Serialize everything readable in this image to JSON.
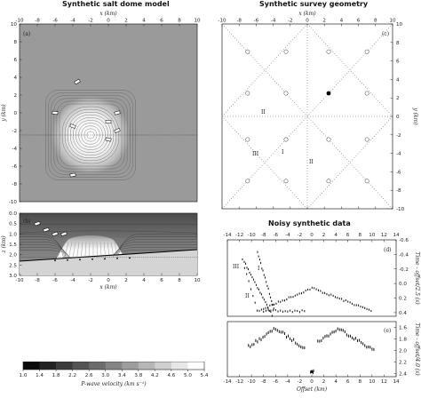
{
  "titles": {
    "model": "Synthetic salt dome model",
    "survey": "Synthetic survey geometry",
    "data": "Noisy synthetic data"
  },
  "panel_labels": {
    "a": "(a)",
    "b": "(b)",
    "c": "(c)",
    "d": "(d)",
    "e": "(e)"
  },
  "axes": {
    "x_km": "x (km)",
    "y_km": "y (km)",
    "z_km": "z (km)",
    "offset_km": "Offset (km)",
    "time_d": "Time - offset/2.5 (s)",
    "time_e": "Time - offset/4.0 (s)",
    "xy_ticks": [
      "-10",
      "-8",
      "-6",
      "-4",
      "-2",
      "0",
      "2",
      "4",
      "6",
      "8",
      "10"
    ],
    "z_ticks": [
      "0.0",
      "0.5",
      "1.0",
      "1.5",
      "2.0",
      "2.5",
      "3.0"
    ],
    "offset_ticks": [
      "-14",
      "-12",
      "-10",
      "-8",
      "-6",
      "-4",
      "-2",
      "0",
      "2",
      "4",
      "6",
      "8",
      "10",
      "12",
      "14"
    ],
    "time_d_ticks": [
      "-0.6",
      "-0.4",
      "-0.2",
      "0.0",
      "0.2",
      "0.4"
    ],
    "time_e_ticks": [
      "1.6",
      "1.8",
      "2.0",
      "2.2",
      "2.4"
    ]
  },
  "line_labels": {
    "I": "I",
    "II": "II",
    "III": "III"
  },
  "colorbar": {
    "label": "P-wave velocity (km s⁻¹)",
    "ticks": [
      "1.0",
      "1.4",
      "1.8",
      "2.2",
      "2.6",
      "3.0",
      "3.4",
      "3.8",
      "4.2",
      "4.6",
      "5.0",
      "5.4"
    ],
    "min": 1.0,
    "max": 5.4
  },
  "chart_data": [
    {
      "panel": "a",
      "type": "heatmap",
      "title": "Synthetic salt dome model",
      "xlabel": "x (km)",
      "ylabel": "y (km)",
      "xlim": [
        -10,
        10
      ],
      "ylim": [
        -10,
        10
      ],
      "dome_center": [
        -2,
        -2.5
      ],
      "receivers": [
        [
          -3.5,
          3.5
        ],
        [
          -6,
          0
        ],
        [
          1,
          0
        ],
        [
          -4,
          -1.5
        ],
        [
          0,
          -1
        ],
        [
          1,
          -2
        ],
        [
          0,
          -3
        ],
        [
          -4,
          -7
        ]
      ]
    },
    {
      "panel": "b",
      "type": "heatmap",
      "xlabel": "x (km)",
      "ylabel": "z (km)",
      "xlim": [
        -10,
        10
      ],
      "ylim": [
        3.0,
        0.0
      ],
      "receivers": [
        [
          -8,
          0.5
        ],
        [
          -7,
          0.8
        ],
        [
          -6,
          1.0
        ],
        [
          -5,
          1.0
        ]
      ]
    },
    {
      "panel": "c",
      "type": "scatter",
      "title": "Synthetic survey geometry",
      "xlabel": "x (km)",
      "ylabel": "y (km)",
      "xlim": [
        -10,
        10
      ],
      "ylim": [
        -10,
        10
      ],
      "receivers_open": [
        [
          -7,
          7
        ],
        [
          -2.5,
          7
        ],
        [
          2.5,
          7
        ],
        [
          7,
          7
        ],
        [
          -7,
          2.5
        ],
        [
          -2.5,
          2.5
        ],
        [
          7,
          2.5
        ],
        [
          -7,
          -2.5
        ],
        [
          -2.5,
          -2.5
        ],
        [
          2.5,
          -2.5
        ],
        [
          7,
          -2.5
        ],
        [
          -7,
          -7
        ],
        [
          -2.5,
          -7
        ],
        [
          2.5,
          -7
        ],
        [
          7,
          -7
        ]
      ],
      "receivers_filled": [
        [
          2.5,
          2.5
        ]
      ]
    },
    {
      "panel": "d",
      "type": "scatter",
      "title": "Noisy synthetic data",
      "xlabel": "Offset (km)",
      "ylabel": "Time - offset/2.5 (s)",
      "xlim": [
        -14,
        14
      ],
      "ylim": [
        -0.6,
        0.45
      ]
    },
    {
      "panel": "e",
      "type": "scatter",
      "xlabel": "Offset (km)",
      "ylabel": "Time - offset/4.0 (s)",
      "xlim": [
        -14,
        14
      ],
      "ylim": [
        1.5,
        2.45
      ]
    }
  ]
}
